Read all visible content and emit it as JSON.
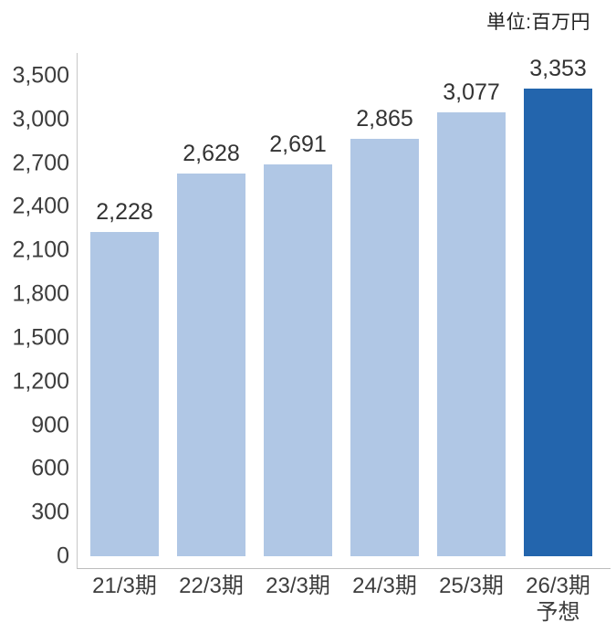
{
  "unit": "単位:百万円",
  "chart_data": {
    "type": "bar",
    "title": "",
    "unit_label": "単位:百万円",
    "categories": [
      {
        "label": "21/3期",
        "sublabel": ""
      },
      {
        "label": "22/3期",
        "sublabel": ""
      },
      {
        "label": "23/3期",
        "sublabel": ""
      },
      {
        "label": "24/3期",
        "sublabel": ""
      },
      {
        "label": "25/3期",
        "sublabel": ""
      },
      {
        "label": "26/3期",
        "sublabel": "予想"
      }
    ],
    "values": [
      2228,
      2628,
      2691,
      2865,
      3077,
      3353
    ],
    "value_labels": [
      "2,228",
      "2,628",
      "2,691",
      "2,865",
      "3,077",
      "3,353"
    ],
    "y_ticks": [
      0,
      300,
      600,
      900,
      1200,
      1500,
      1800,
      2100,
      2400,
      2700,
      3000,
      3500
    ],
    "y_tick_labels": [
      "0",
      "300",
      "600",
      "900",
      "1,200",
      "1,500",
      "1,800",
      "2,100",
      "2,400",
      "2,700",
      "3,000",
      "3,500"
    ],
    "ylim": [
      0,
      3500
    ],
    "grid": false,
    "legend": "none",
    "xlabel": "",
    "ylabel": "",
    "bar_color": "#b0c7e5",
    "highlight_color": "#2365ad",
    "highlight_index": 5,
    "axis_color": "#c7c7c7",
    "text_color": "#3d3d3d"
  }
}
